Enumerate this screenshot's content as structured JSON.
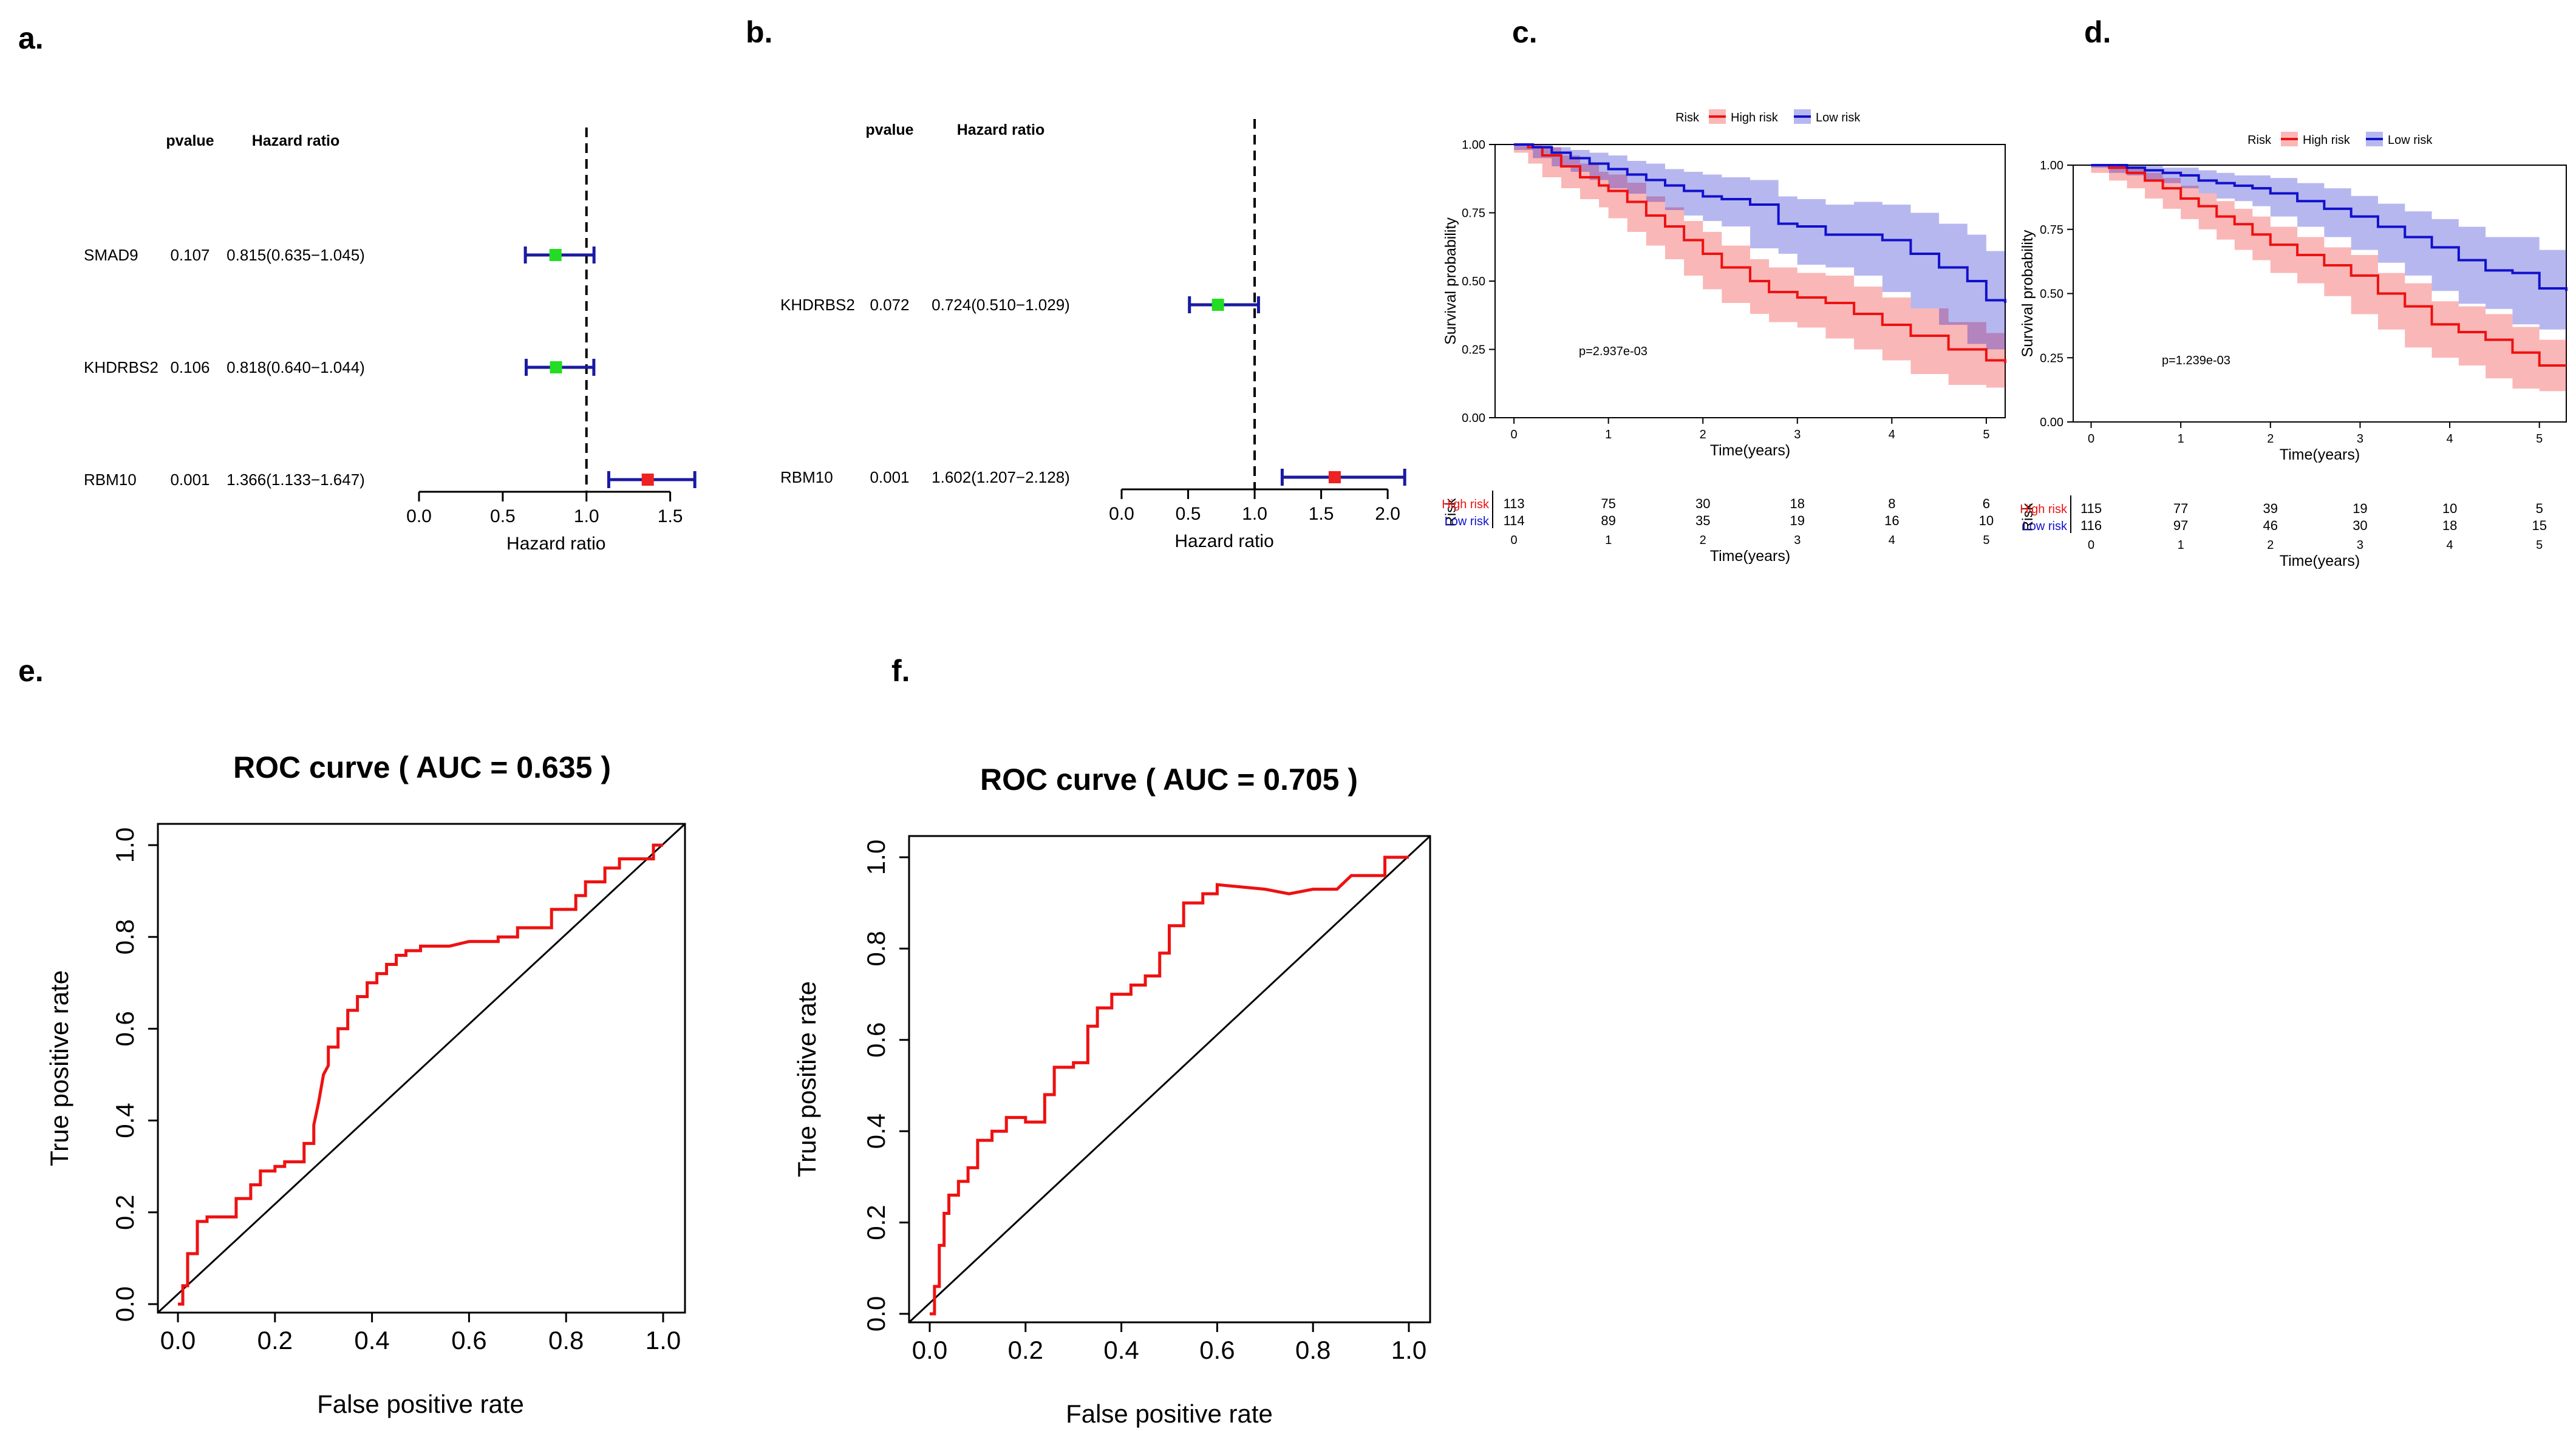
{
  "panel_labels": [
    "a.",
    "b.",
    "c.",
    "d.",
    "e.",
    "f."
  ],
  "chart_data": [
    {
      "type": "forest",
      "panel": "a.",
      "header_pvalue": "pvalue",
      "header_hr": "Hazard ratio",
      "xlabel": "Hazard ratio",
      "xlim": [
        0,
        1.65
      ],
      "xticks": [
        "0.0",
        "0.5",
        "1.0",
        "1.5"
      ],
      "xtick_values": [
        0,
        0.5,
        1.0,
        1.5
      ],
      "reference": 1.0,
      "rows": [
        {
          "gene": "SMAD9",
          "pvalue": "0.107",
          "hr_text": "0.815(0.635−1.045)",
          "hr": 0.815,
          "lo": 0.635,
          "hi": 1.045,
          "color": "#22dd22"
        },
        {
          "gene": "KHDRBS2",
          "pvalue": "0.106",
          "hr_text": "0.818(0.640−1.044)",
          "hr": 0.818,
          "lo": 0.64,
          "hi": 1.044,
          "color": "#22dd22"
        },
        {
          "gene": "RBM10",
          "pvalue": "0.001",
          "hr_text": "1.366(1.133−1.647)",
          "hr": 1.366,
          "lo": 1.133,
          "hi": 1.647,
          "color": "#ee2222"
        }
      ]
    },
    {
      "type": "forest",
      "panel": "b.",
      "header_pvalue": "pvalue",
      "header_hr": "Hazard ratio",
      "xlabel": "Hazard ratio",
      "xlim": [
        0,
        2.15
      ],
      "xticks": [
        "0.0",
        "0.5",
        "1.0",
        "1.5",
        "2.0"
      ],
      "xtick_values": [
        0,
        0.5,
        1.0,
        1.5,
        2.0
      ],
      "reference": 1.0,
      "rows": [
        {
          "gene": "KHDRBS2",
          "pvalue": "0.072",
          "hr_text": "0.724(0.510−1.029)",
          "hr": 0.724,
          "lo": 0.51,
          "hi": 1.029,
          "color": "#22dd22"
        },
        {
          "gene": "RBM10",
          "pvalue": "0.001",
          "hr_text": "1.602(1.207−2.128)",
          "hr": 1.602,
          "lo": 1.207,
          "hi": 2.128,
          "color": "#ee2222"
        }
      ]
    },
    {
      "type": "line",
      "subtype": "kaplan-meier",
      "panel": "c.",
      "legend_title": "Risk",
      "legend": [
        "High risk",
        "Low risk"
      ],
      "ylabel": "Survival probability",
      "xlabel": "Time(years)",
      "xlim": [
        -0.2,
        5.2
      ],
      "ylim": [
        0,
        1
      ],
      "yticks": [
        "0.00",
        "0.25",
        "0.50",
        "0.75",
        "1.00"
      ],
      "xticks": [
        "0",
        "1",
        "2",
        "3",
        "4",
        "5"
      ],
      "pvalue_text": "p=2.937e-03",
      "risk_table_label": "Risk",
      "risk_table": [
        {
          "name": "High risk",
          "counts": [
            "113",
            "75",
            "30",
            "18",
            "8",
            "6"
          ]
        },
        {
          "name": "Low risk",
          "counts": [
            "114",
            "89",
            "35",
            "19",
            "16",
            "10"
          ]
        }
      ],
      "series": [
        {
          "name": "High risk",
          "color": "#ee1111",
          "x": [
            0,
            0.15,
            0.3,
            0.5,
            0.7,
            0.9,
            1.0,
            1.2,
            1.4,
            1.6,
            1.8,
            2.0,
            2.2,
            2.5,
            2.7,
            3.0,
            3.3,
            3.6,
            3.9,
            4.2,
            4.6,
            5.0,
            5.2
          ],
          "y": [
            1.0,
            0.99,
            0.96,
            0.92,
            0.88,
            0.85,
            0.83,
            0.79,
            0.74,
            0.7,
            0.65,
            0.6,
            0.55,
            0.5,
            0.46,
            0.44,
            0.42,
            0.38,
            0.34,
            0.3,
            0.25,
            0.21,
            0.2
          ],
          "lower": [
            1.0,
            0.97,
            0.93,
            0.88,
            0.84,
            0.8,
            0.77,
            0.73,
            0.68,
            0.63,
            0.58,
            0.52,
            0.47,
            0.42,
            0.38,
            0.35,
            0.33,
            0.29,
            0.25,
            0.21,
            0.16,
            0.12,
            0.11
          ],
          "upper": [
            1.0,
            1.0,
            0.99,
            0.96,
            0.93,
            0.9,
            0.89,
            0.86,
            0.81,
            0.77,
            0.72,
            0.68,
            0.63,
            0.58,
            0.55,
            0.53,
            0.52,
            0.48,
            0.44,
            0.4,
            0.35,
            0.31,
            0.3
          ]
        },
        {
          "name": "Low risk",
          "color": "#1111cc",
          "x": [
            0,
            0.2,
            0.4,
            0.6,
            0.8,
            1.0,
            1.2,
            1.4,
            1.6,
            1.8,
            2.0,
            2.2,
            2.5,
            2.8,
            3.0,
            3.3,
            3.6,
            3.9,
            4.2,
            4.5,
            4.8,
            5.0,
            5.2
          ],
          "y": [
            1.0,
            0.99,
            0.97,
            0.95,
            0.93,
            0.91,
            0.89,
            0.87,
            0.85,
            0.83,
            0.81,
            0.8,
            0.78,
            0.71,
            0.7,
            0.67,
            0.67,
            0.65,
            0.6,
            0.55,
            0.5,
            0.43,
            0.42
          ],
          "lower": [
            1.0,
            0.98,
            0.95,
            0.92,
            0.9,
            0.87,
            0.84,
            0.82,
            0.79,
            0.76,
            0.74,
            0.72,
            0.7,
            0.62,
            0.6,
            0.56,
            0.55,
            0.52,
            0.46,
            0.4,
            0.34,
            0.27,
            0.25
          ],
          "upper": [
            1.0,
            1.0,
            0.99,
            0.98,
            0.97,
            0.96,
            0.94,
            0.93,
            0.91,
            0.9,
            0.89,
            0.88,
            0.87,
            0.81,
            0.8,
            0.78,
            0.79,
            0.78,
            0.75,
            0.71,
            0.67,
            0.61,
            0.6
          ]
        }
      ]
    },
    {
      "type": "line",
      "subtype": "kaplan-meier",
      "panel": "d.",
      "legend_title": "Risk",
      "legend": [
        "High risk",
        "Low risk"
      ],
      "ylabel": "Survival probability",
      "xlabel": "Time(years)",
      "xlim": [
        -0.2,
        5.3
      ],
      "ylim": [
        0,
        1
      ],
      "yticks": [
        "0.00",
        "0.25",
        "0.50",
        "0.75",
        "1.00"
      ],
      "xticks": [
        "0",
        "1",
        "2",
        "3",
        "4",
        "5"
      ],
      "pvalue_text": "p=1.239e-03",
      "risk_table_label": "Risk",
      "risk_table": [
        {
          "name": "High risk",
          "counts": [
            "115",
            "77",
            "39",
            "19",
            "10",
            "5"
          ]
        },
        {
          "name": "Low risk",
          "counts": [
            "116",
            "97",
            "46",
            "30",
            "18",
            "15"
          ]
        }
      ],
      "series": [
        {
          "name": "High risk",
          "color": "#ee1111",
          "x": [
            0,
            0.2,
            0.4,
            0.6,
            0.8,
            1.0,
            1.2,
            1.4,
            1.6,
            1.8,
            2.0,
            2.3,
            2.6,
            2.9,
            3.2,
            3.5,
            3.8,
            4.1,
            4.4,
            4.7,
            5.0,
            5.3
          ],
          "y": [
            1.0,
            0.99,
            0.97,
            0.94,
            0.91,
            0.87,
            0.84,
            0.8,
            0.77,
            0.73,
            0.69,
            0.65,
            0.61,
            0.57,
            0.5,
            0.45,
            0.38,
            0.35,
            0.32,
            0.27,
            0.22,
            0.22
          ],
          "lower": [
            1.0,
            0.97,
            0.94,
            0.91,
            0.87,
            0.83,
            0.79,
            0.75,
            0.71,
            0.67,
            0.63,
            0.58,
            0.54,
            0.49,
            0.42,
            0.36,
            0.29,
            0.25,
            0.22,
            0.17,
            0.13,
            0.12
          ],
          "upper": [
            1.0,
            1.0,
            0.99,
            0.97,
            0.95,
            0.92,
            0.89,
            0.86,
            0.83,
            0.8,
            0.76,
            0.72,
            0.68,
            0.65,
            0.58,
            0.54,
            0.47,
            0.45,
            0.42,
            0.37,
            0.32,
            0.32
          ]
        },
        {
          "name": "Low risk",
          "color": "#1111cc",
          "x": [
            0,
            0.2,
            0.4,
            0.6,
            0.8,
            1.0,
            1.2,
            1.4,
            1.6,
            1.8,
            2.0,
            2.3,
            2.6,
            2.9,
            3.2,
            3.5,
            3.8,
            4.1,
            4.4,
            4.7,
            5.0,
            5.3
          ],
          "y": [
            1.0,
            1.0,
            0.99,
            0.98,
            0.97,
            0.96,
            0.94,
            0.93,
            0.92,
            0.91,
            0.89,
            0.86,
            0.83,
            0.8,
            0.76,
            0.72,
            0.68,
            0.63,
            0.59,
            0.58,
            0.52,
            0.51
          ],
          "lower": [
            1.0,
            0.99,
            0.97,
            0.96,
            0.94,
            0.93,
            0.91,
            0.89,
            0.87,
            0.86,
            0.84,
            0.8,
            0.76,
            0.72,
            0.67,
            0.62,
            0.57,
            0.51,
            0.46,
            0.44,
            0.38,
            0.36
          ],
          "upper": [
            1.0,
            1.0,
            1.0,
            1.0,
            0.99,
            0.99,
            0.98,
            0.97,
            0.96,
            0.96,
            0.95,
            0.93,
            0.91,
            0.88,
            0.85,
            0.82,
            0.79,
            0.76,
            0.72,
            0.72,
            0.67,
            0.66
          ]
        }
      ]
    },
    {
      "type": "line",
      "subtype": "roc",
      "panel": "e.",
      "title": "ROC curve ( AUC =  0.635 )",
      "xlabel": "False positive rate",
      "ylabel": "True positive rate",
      "xlim": [
        0,
        1
      ],
      "ylim": [
        0,
        1
      ],
      "xticks": [
        "0.0",
        "0.2",
        "0.4",
        "0.6",
        "0.8",
        "1.0"
      ],
      "yticks": [
        "0.0",
        "0.2",
        "0.4",
        "0.6",
        "0.8",
        "1.0"
      ],
      "series": [
        {
          "name": "ROC",
          "color": "#ee1111",
          "x": [
            0,
            0.01,
            0.01,
            0.02,
            0.02,
            0.04,
            0.04,
            0.06,
            0.06,
            0.12,
            0.12,
            0.15,
            0.15,
            0.17,
            0.17,
            0.2,
            0.2,
            0.22,
            0.22,
            0.26,
            0.26,
            0.28,
            0.28,
            0.29,
            0.3,
            0.31,
            0.31,
            0.33,
            0.33,
            0.35,
            0.35,
            0.37,
            0.37,
            0.39,
            0.39,
            0.41,
            0.41,
            0.43,
            0.43,
            0.45,
            0.45,
            0.47,
            0.47,
            0.5,
            0.5,
            0.56,
            0.6,
            0.66,
            0.66,
            0.7,
            0.7,
            0.77,
            0.77,
            0.82,
            0.82,
            0.84,
            0.84,
            0.88,
            0.88,
            0.91,
            0.91,
            0.98,
            0.98,
            1.0
          ],
          "y": [
            0,
            0,
            0.04,
            0.04,
            0.11,
            0.11,
            0.18,
            0.18,
            0.19,
            0.19,
            0.23,
            0.23,
            0.26,
            0.26,
            0.29,
            0.29,
            0.3,
            0.3,
            0.31,
            0.31,
            0.35,
            0.35,
            0.39,
            0.44,
            0.5,
            0.52,
            0.56,
            0.56,
            0.6,
            0.6,
            0.64,
            0.64,
            0.67,
            0.67,
            0.7,
            0.7,
            0.72,
            0.72,
            0.74,
            0.74,
            0.76,
            0.76,
            0.77,
            0.77,
            0.78,
            0.78,
            0.79,
            0.79,
            0.8,
            0.8,
            0.82,
            0.82,
            0.86,
            0.86,
            0.89,
            0.89,
            0.92,
            0.92,
            0.95,
            0.95,
            0.97,
            0.97,
            1.0,
            1.0
          ]
        }
      ]
    },
    {
      "type": "line",
      "subtype": "roc",
      "panel": "f.",
      "title": "ROC curve ( AUC =  0.705 )",
      "xlabel": "False positive rate",
      "ylabel": "True positive rate",
      "xlim": [
        0,
        1
      ],
      "ylim": [
        0,
        1
      ],
      "xticks": [
        "0.0",
        "0.2",
        "0.4",
        "0.6",
        "0.8",
        "1.0"
      ],
      "yticks": [
        "0.0",
        "0.2",
        "0.4",
        "0.6",
        "0.8",
        "1.0"
      ],
      "series": [
        {
          "name": "ROC",
          "color": "#ee1111",
          "x": [
            0,
            0.01,
            0.01,
            0.02,
            0.02,
            0.03,
            0.03,
            0.04,
            0.04,
            0.06,
            0.06,
            0.08,
            0.08,
            0.1,
            0.1,
            0.13,
            0.13,
            0.16,
            0.16,
            0.2,
            0.2,
            0.24,
            0.24,
            0.26,
            0.26,
            0.3,
            0.3,
            0.33,
            0.33,
            0.35,
            0.35,
            0.38,
            0.38,
            0.42,
            0.42,
            0.45,
            0.45,
            0.48,
            0.48,
            0.5,
            0.5,
            0.53,
            0.53,
            0.57,
            0.57,
            0.6,
            0.6,
            0.7,
            0.75,
            0.8,
            0.85,
            0.88,
            0.88,
            0.95,
            0.95,
            1.0
          ],
          "y": [
            0,
            0,
            0.06,
            0.06,
            0.15,
            0.15,
            0.22,
            0.22,
            0.26,
            0.26,
            0.29,
            0.29,
            0.32,
            0.32,
            0.38,
            0.38,
            0.4,
            0.4,
            0.43,
            0.43,
            0.42,
            0.42,
            0.48,
            0.48,
            0.54,
            0.54,
            0.55,
            0.55,
            0.63,
            0.63,
            0.67,
            0.67,
            0.7,
            0.7,
            0.72,
            0.72,
            0.74,
            0.74,
            0.79,
            0.79,
            0.85,
            0.85,
            0.9,
            0.9,
            0.92,
            0.92,
            0.94,
            0.93,
            0.92,
            0.93,
            0.93,
            0.96,
            0.96,
            0.96,
            1.0,
            1.0
          ]
        }
      ]
    }
  ]
}
